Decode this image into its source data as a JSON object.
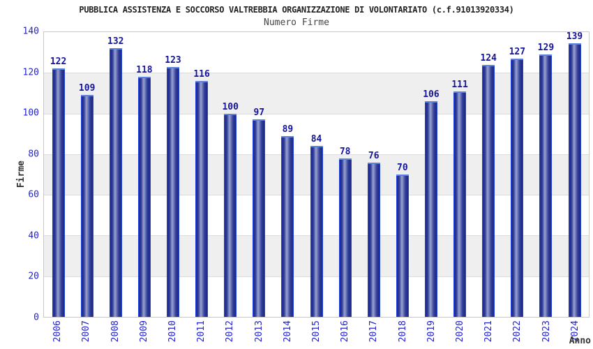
{
  "header": {
    "title": "PUBBLICA ASSISTENZA E SOCCORSO VALTREBBIA ORGANIZZAZIONE DI VOLONTARIATO (c.f.91013920334)",
    "subtitle": "Numero Firme"
  },
  "chart_data": {
    "type": "bar",
    "title": "PUBBLICA ASSISTENZA E SOCCORSO VALTREBBIA ORGANIZZAZIONE DI VOLONTARIATO (c.f.91013920334)",
    "subtitle": "Numero Firme",
    "xlabel": "Anno",
    "ylabel": "Firme",
    "categories": [
      "2006",
      "2007",
      "2008",
      "2009",
      "2010",
      "2011",
      "2012",
      "2013",
      "2014",
      "2015",
      "2016",
      "2017",
      "2018",
      "2019",
      "2020",
      "2021",
      "2022",
      "2023",
      "2024"
    ],
    "values": [
      122,
      109,
      132,
      118,
      123,
      116,
      100,
      97,
      89,
      84,
      78,
      76,
      70,
      106,
      111,
      124,
      127,
      129,
      139
    ],
    "ylim": [
      0,
      140
    ],
    "ytick_step": 20,
    "grid": true,
    "legend": "none",
    "background_bands": "alternating gray/white every 20 units",
    "colors": {
      "tick_label": "#2323cb",
      "value_label": "#15159b",
      "band_gray": "#efefef",
      "gridline": "#dcdcdc",
      "plot_border": "#c8c8c8",
      "bar_edge": "#2244dd",
      "bar_dark": "#1c2880",
      "bar_mid": "#333f9c",
      "bar_light": "#9aa3ce",
      "bar_top_highlight": "#5b82de",
      "title": "#222222",
      "subtitle": "#444444",
      "axis_title": "#333333"
    }
  }
}
